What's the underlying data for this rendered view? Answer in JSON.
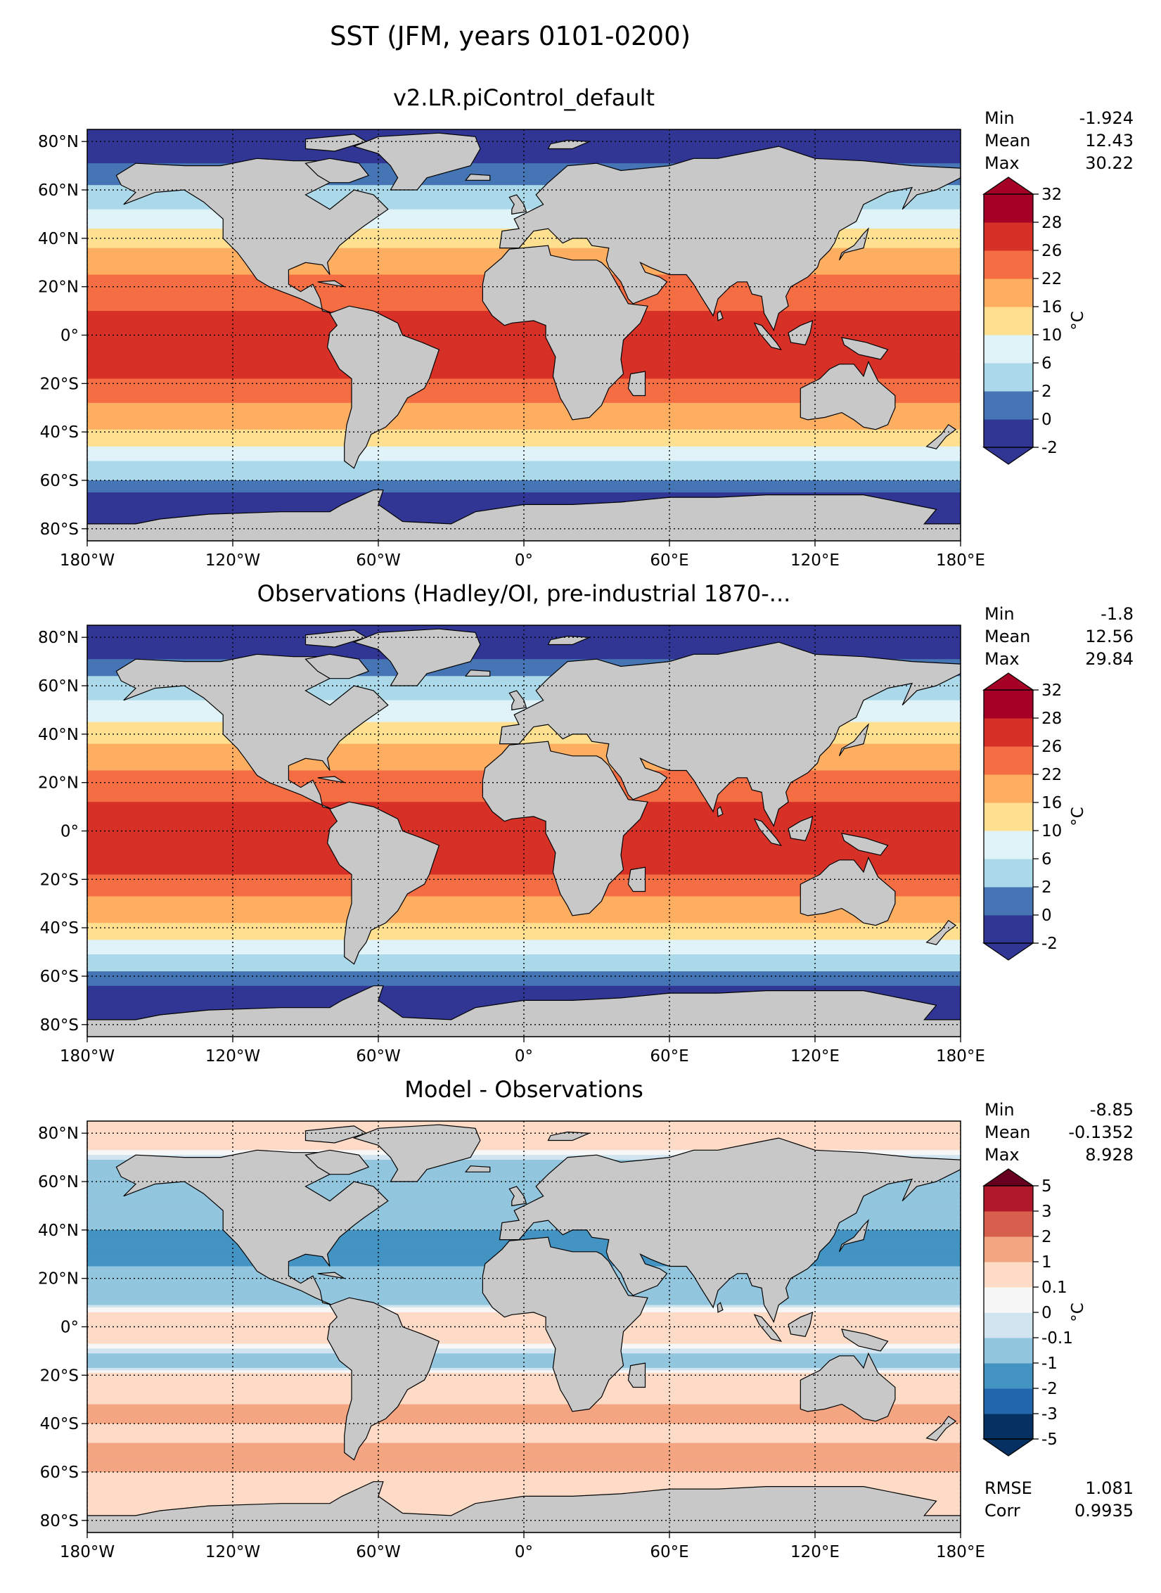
{
  "figure": {
    "title": "SST (JFM, years 0101-0200)"
  },
  "colors": {
    "ocean_levels": [
      "#313695",
      "#4575b4",
      "#abd9e9",
      "#e0f3f8",
      "#fee090",
      "#fdae61",
      "#f46d43",
      "#d73027",
      "#a50026"
    ],
    "diff_levels": [
      "#053061",
      "#2166ac",
      "#4393c3",
      "#92c5de",
      "#d1e5f0",
      "#f7f7f7",
      "#fddbc7",
      "#f4a582",
      "#d6604d",
      "#b2182b",
      "#67001f"
    ],
    "land": "#c8c8c8"
  },
  "chart_data": [
    {
      "type": "heatmap",
      "title": "v2.LR.piControl_default",
      "variable": "SST",
      "x_ticks": [
        "180°W",
        "120°W",
        "60°W",
        "0°",
        "60°E",
        "120°E",
        "180°E"
      ],
      "y_ticks": [
        "80°N",
        "60°N",
        "40°N",
        "20°N",
        "0°",
        "20°S",
        "40°S",
        "60°S",
        "80°S"
      ],
      "xlim": [
        -180,
        180
      ],
      "ylim": [
        -85,
        85
      ],
      "grid": true,
      "stats": {
        "Min": "-1.924",
        "Mean": "12.43",
        "Max": "30.22"
      },
      "colorbar": {
        "levels": [
          "-2",
          "0",
          "2",
          "6",
          "10",
          "16",
          "22",
          "26",
          "28",
          "32"
        ],
        "unit": "°C",
        "extend": "both"
      },
      "zonal_profile": [
        {
          "lat": 85,
          "sst": -1.8
        },
        {
          "lat": 75,
          "sst": -1.0
        },
        {
          "lat": 60,
          "sst": 2.5
        },
        {
          "lat": 45,
          "sst": 9
        },
        {
          "lat": 35,
          "sst": 17
        },
        {
          "lat": 25,
          "sst": 22
        },
        {
          "lat": 15,
          "sst": 25
        },
        {
          "lat": 5,
          "sst": 27
        },
        {
          "lat": -5,
          "sst": 27.5
        },
        {
          "lat": -15,
          "sst": 27
        },
        {
          "lat": -25,
          "sst": 23
        },
        {
          "lat": -35,
          "sst": 19
        },
        {
          "lat": -45,
          "sst": 11
        },
        {
          "lat": -55,
          "sst": 4
        },
        {
          "lat": -65,
          "sst": 0
        },
        {
          "lat": -78,
          "sst": -1.8
        }
      ]
    },
    {
      "type": "heatmap",
      "title": "Observations (Hadley/OI, pre-industrial 1870-...",
      "variable": "SST",
      "x_ticks": [
        "180°W",
        "120°W",
        "60°W",
        "0°",
        "60°E",
        "120°E",
        "180°E"
      ],
      "y_ticks": [
        "80°N",
        "60°N",
        "40°N",
        "20°N",
        "0°",
        "20°S",
        "40°S",
        "60°S",
        "80°S"
      ],
      "xlim": [
        -180,
        180
      ],
      "ylim": [
        -85,
        85
      ],
      "grid": true,
      "stats": {
        "Min": "-1.8",
        "Mean": "12.56",
        "Max": "29.84"
      },
      "colorbar": {
        "levels": [
          "-2",
          "0",
          "2",
          "6",
          "10",
          "16",
          "22",
          "26",
          "28",
          "32"
        ],
        "unit": "°C",
        "extend": "both"
      },
      "zonal_profile": [
        {
          "lat": 85,
          "sst": -1.8
        },
        {
          "lat": 75,
          "sst": -1.2
        },
        {
          "lat": 60,
          "sst": 3
        },
        {
          "lat": 45,
          "sst": 10
        },
        {
          "lat": 35,
          "sst": 17
        },
        {
          "lat": 25,
          "sst": 22
        },
        {
          "lat": 15,
          "sst": 25.5
        },
        {
          "lat": 5,
          "sst": 27
        },
        {
          "lat": -5,
          "sst": 27.5
        },
        {
          "lat": -15,
          "sst": 27
        },
        {
          "lat": -25,
          "sst": 23
        },
        {
          "lat": -35,
          "sst": 18
        },
        {
          "lat": -45,
          "sst": 10
        },
        {
          "lat": -55,
          "sst": 3
        },
        {
          "lat": -65,
          "sst": -0.5
        },
        {
          "lat": -78,
          "sst": -1.8
        }
      ]
    },
    {
      "type": "heatmap",
      "title": "Model - Observations",
      "variable": "SST difference",
      "x_ticks": [
        "180°W",
        "120°W",
        "60°W",
        "0°",
        "60°E",
        "120°E",
        "180°E"
      ],
      "y_ticks": [
        "80°N",
        "60°N",
        "40°N",
        "20°N",
        "0°",
        "20°S",
        "40°S",
        "60°S",
        "80°S"
      ],
      "xlim": [
        -180,
        180
      ],
      "ylim": [
        -85,
        85
      ],
      "grid": true,
      "stats": {
        "Min": "-8.85",
        "Mean": "-0.1352",
        "Max": "8.928"
      },
      "extra_stats": {
        "RMSE": "1.081",
        "Corr": "0.9935"
      },
      "colorbar": {
        "levels": [
          "-5",
          "-3",
          "-2",
          "-1",
          "-0.1",
          "0",
          "0.1",
          "1",
          "2",
          "3",
          "5"
        ],
        "unit": "°C",
        "extend": "both"
      },
      "zonal_profile": [
        {
          "lat": 85,
          "sst": 0.3
        },
        {
          "lat": 75,
          "sst": 0.2
        },
        {
          "lat": 60,
          "sst": -0.5
        },
        {
          "lat": 45,
          "sst": -0.8
        },
        {
          "lat": 35,
          "sst": -1.2
        },
        {
          "lat": 25,
          "sst": -1.0
        },
        {
          "lat": 15,
          "sst": -0.5
        },
        {
          "lat": 5,
          "sst": 0.2
        },
        {
          "lat": -5,
          "sst": 0.2
        },
        {
          "lat": -15,
          "sst": -0.3
        },
        {
          "lat": -25,
          "sst": 0.6
        },
        {
          "lat": -35,
          "sst": 1.2
        },
        {
          "lat": -45,
          "sst": 0.8
        },
        {
          "lat": -55,
          "sst": 1.5
        },
        {
          "lat": -65,
          "sst": 0.5
        },
        {
          "lat": -78,
          "sst": 0.1
        }
      ]
    }
  ]
}
